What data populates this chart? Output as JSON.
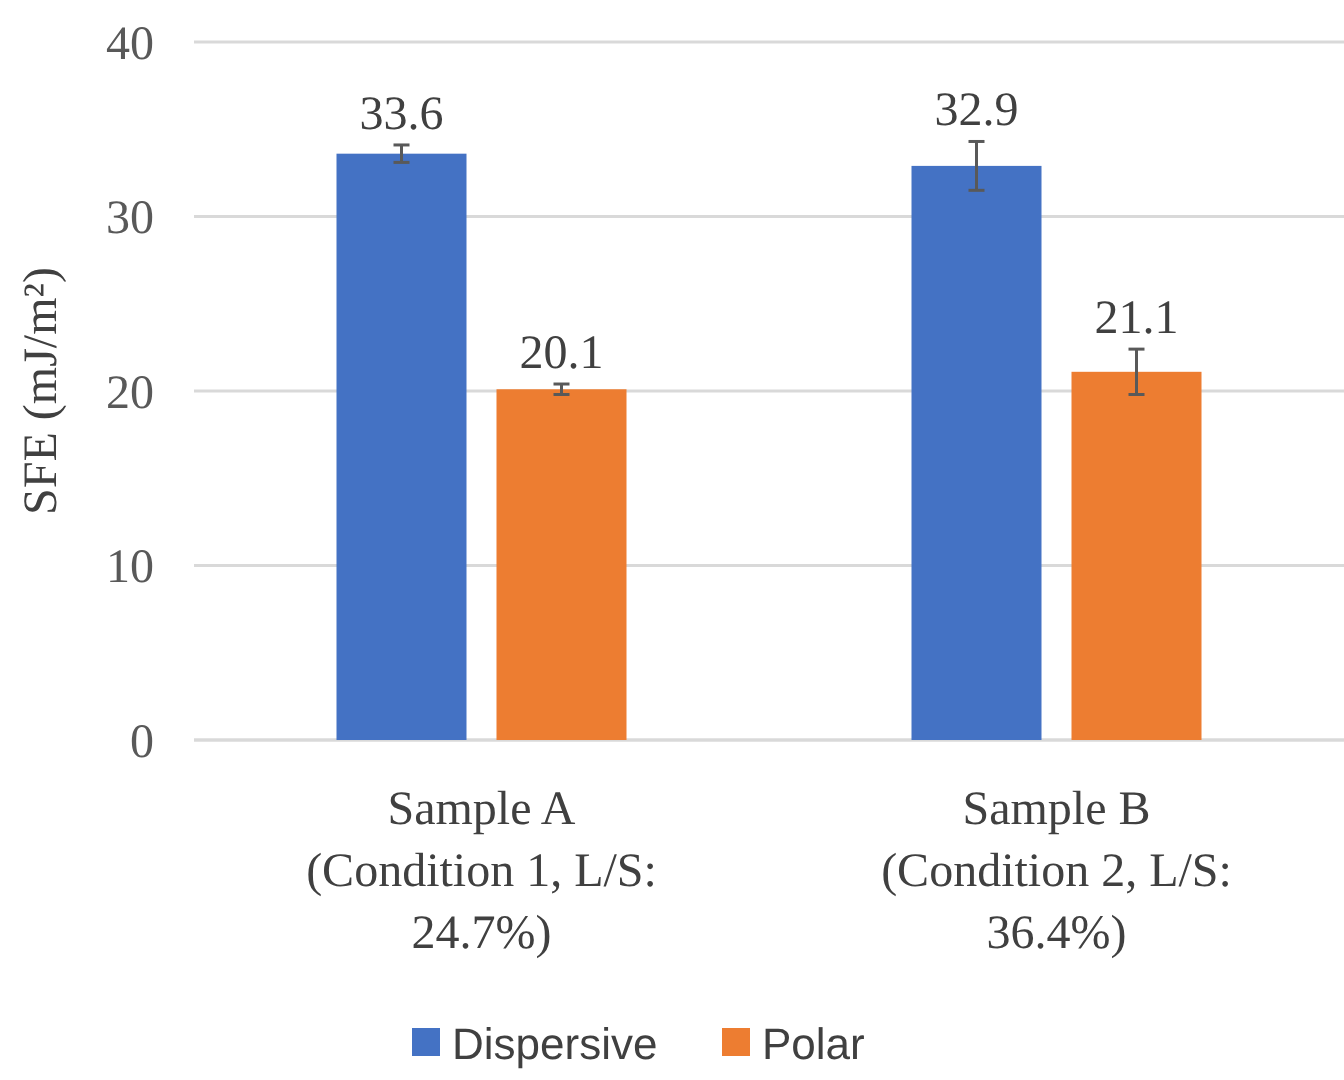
{
  "chart_data": {
    "type": "bar",
    "ylabel": "SFE (mJ/m²)",
    "categories": [
      "Sample A\n(Condition 1, L/S:\n24.7%)",
      "Sample B\n(Condition 2, L/S:\n36.4%)"
    ],
    "series": [
      {
        "name": "Dispersive",
        "color": "#4472c4",
        "values": [
          33.6,
          32.9
        ],
        "errors": [
          0.5,
          1.4
        ]
      },
      {
        "name": "Polar",
        "color": "#ed7d31",
        "values": [
          20.1,
          21.1
        ],
        "errors": [
          0.3,
          1.3
        ]
      }
    ],
    "ylim": [
      0,
      40
    ],
    "yticks": [
      0,
      10,
      20,
      30,
      40
    ],
    "grid": "y",
    "legend": "bottom",
    "data_labels": true
  }
}
